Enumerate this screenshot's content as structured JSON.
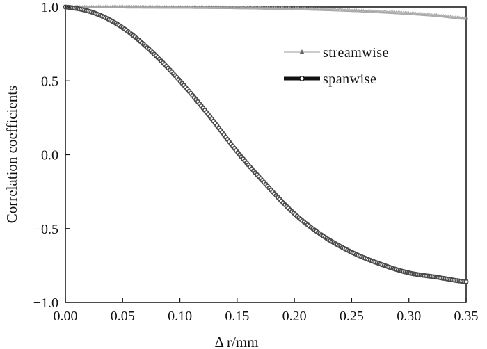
{
  "chart_data": {
    "type": "line",
    "title": "",
    "xlabel": "Δ r/mm",
    "ylabel": "Correlation coefficients",
    "xlim": [
      0,
      0.35
    ],
    "ylim": [
      -1,
      1
    ],
    "xticks": [
      0,
      0.05,
      0.1,
      0.15,
      0.2,
      0.25,
      0.3,
      0.35
    ],
    "xtick_labels": [
      "0.00",
      "0.05",
      "0.10",
      "0.15",
      "0.20",
      "0.25",
      "0.30",
      "0.35"
    ],
    "yticks": [
      -1,
      -0.5,
      0,
      0.5,
      1
    ],
    "ytick_labels": [
      "−1.0",
      "−0.5",
      "0.0",
      "0.5",
      "1.0"
    ],
    "grid": false,
    "legend_position": "top-right",
    "series": [
      {
        "name": "streamwise",
        "color": "#a9a9a9",
        "marker": "triangle",
        "x": [
          0,
          0.025,
          0.05,
          0.075,
          0.1,
          0.125,
          0.15,
          0.175,
          0.2,
          0.225,
          0.25,
          0.275,
          0.3,
          0.325,
          0.35
        ],
        "y": [
          1,
          1,
          1,
          0.999,
          0.998,
          0.997,
          0.995,
          0.992,
          0.988,
          0.983,
          0.976,
          0.967,
          0.956,
          0.942,
          0.922
        ]
      },
      {
        "name": "spanwise",
        "color": "#4a4a4a",
        "marker": "circle",
        "x": [
          0,
          0.025,
          0.05,
          0.075,
          0.1,
          0.125,
          0.15,
          0.175,
          0.2,
          0.225,
          0.25,
          0.275,
          0.3,
          0.325,
          0.35
        ],
        "y": [
          1,
          0.96,
          0.86,
          0.7,
          0.5,
          0.27,
          0.02,
          -0.2,
          -0.4,
          -0.55,
          -0.66,
          -0.74,
          -0.8,
          -0.83,
          -0.86
        ]
      }
    ]
  }
}
